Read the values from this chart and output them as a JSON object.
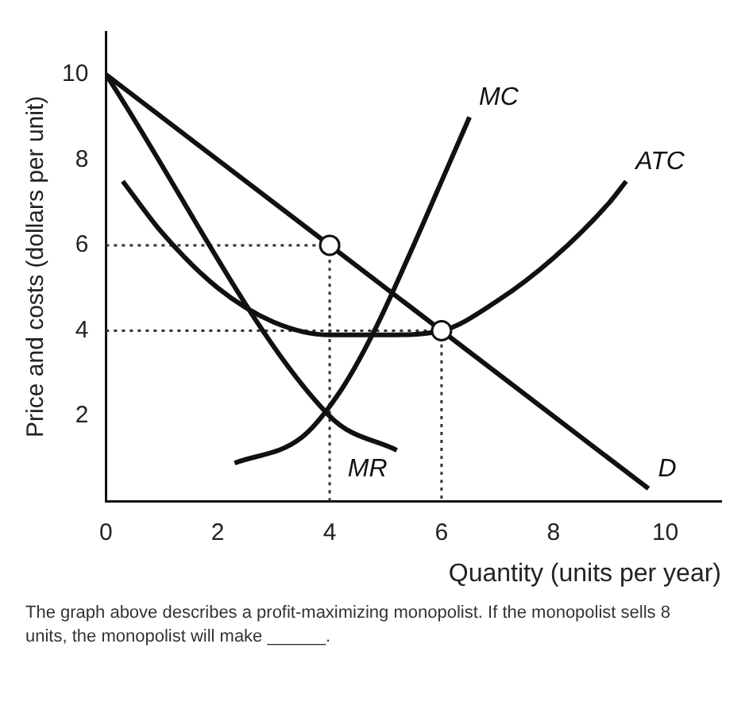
{
  "chart_data": {
    "type": "line",
    "xlabel": "Quantity (units per year)",
    "ylabel": "Price and costs (dollars per unit)",
    "xlim": [
      0,
      11
    ],
    "xticks": [
      0,
      2,
      4,
      6,
      8,
      10
    ],
    "ylim": [
      0,
      11
    ],
    "yticks": [
      2,
      4,
      6,
      8,
      10
    ],
    "grid": false,
    "legend": false,
    "marker": "none",
    "series": [
      {
        "name": "D",
        "color": "#111111",
        "x": [
          0,
          9.7
        ],
        "values": [
          10,
          0.3
        ]
      },
      {
        "name": "MR",
        "color": "#111111",
        "x": [
          0,
          4,
          5.2
        ],
        "values": [
          10,
          2,
          1.2
        ]
      },
      {
        "name": "MC",
        "color": "#111111",
        "x": [
          2.3,
          3.5,
          4.2,
          4.8,
          5.5,
          6.1,
          6.5
        ],
        "values": [
          0.9,
          1.5,
          2.6,
          4,
          6,
          7.8,
          9
        ]
      },
      {
        "name": "ATC",
        "color": "#111111",
        "x": [
          0.3,
          1,
          2,
          3,
          4,
          5,
          6,
          7,
          8,
          9,
          9.3
        ],
        "values": [
          7.5,
          6.3,
          5,
          4.2,
          3.9,
          3.9,
          4,
          4.7,
          5.7,
          7,
          7.5
        ]
      },
      {
        "color": "#333333",
        "line_style": "dotted",
        "x": [
          0,
          4,
          4
        ],
        "values": [
          6,
          6,
          0
        ]
      },
      {
        "color": "#333333",
        "line_style": "dotted",
        "x": [
          0,
          6,
          6
        ],
        "values": [
          4,
          4,
          0
        ]
      },
      {
        "type": "scatter",
        "marker": "circle",
        "color": "#111111",
        "x": [
          4,
          6
        ],
        "values": [
          6,
          4
        ]
      }
    ],
    "annotations": [
      "The graph above describes a profit-maximizing monopolist. If the monopolist sells 8 units, the monopolist will make ______."
    ]
  }
}
